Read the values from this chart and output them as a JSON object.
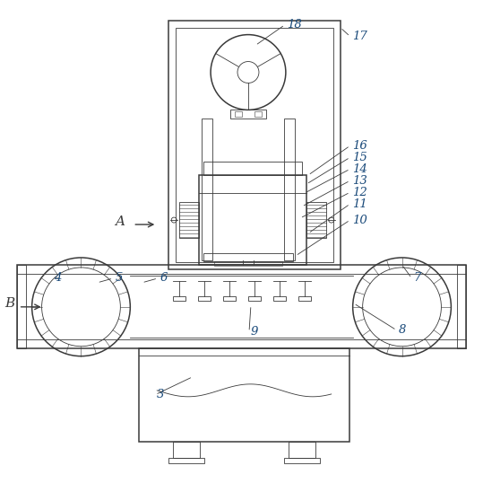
{
  "bg_color": "#ffffff",
  "line_color": "#3a3a3a",
  "label_color": "#1a4a7a",
  "fig_width": 5.39,
  "fig_height": 5.48,
  "dpi": 100
}
